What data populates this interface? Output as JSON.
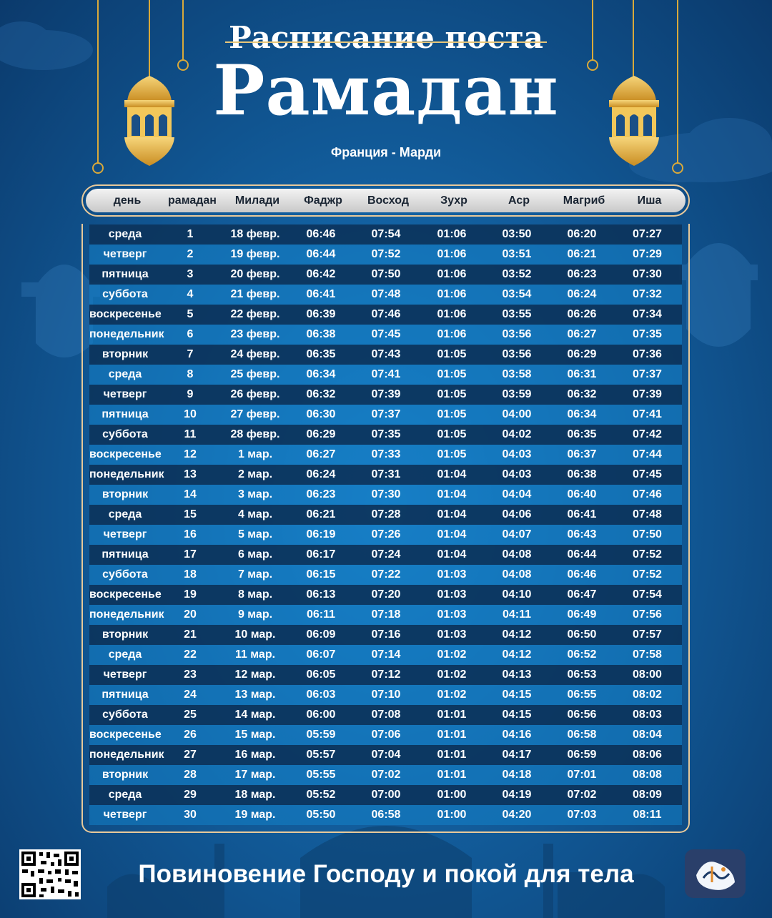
{
  "header": {
    "subtitle": "Расписание поста",
    "title": "Рамадан",
    "location": "Франция - Марди"
  },
  "table": {
    "columns": [
      "день",
      "рамадан",
      "Милади",
      "Фаджр",
      "Восход",
      "Зухр",
      "Аср",
      "Магриб",
      "Иша"
    ],
    "rows": [
      [
        "среда",
        "1",
        "18 февр.",
        "06:46",
        "07:54",
        "01:06",
        "03:50",
        "06:20",
        "07:27"
      ],
      [
        "четверг",
        "2",
        "19 февр.",
        "06:44",
        "07:52",
        "01:06",
        "03:51",
        "06:21",
        "07:29"
      ],
      [
        "пятница",
        "3",
        "20 февр.",
        "06:42",
        "07:50",
        "01:06",
        "03:52",
        "06:23",
        "07:30"
      ],
      [
        "суббота",
        "4",
        "21 февр.",
        "06:41",
        "07:48",
        "01:06",
        "03:54",
        "06:24",
        "07:32"
      ],
      [
        "воскресенье",
        "5",
        "22 февр.",
        "06:39",
        "07:46",
        "01:06",
        "03:55",
        "06:26",
        "07:34"
      ],
      [
        "понедельник",
        "6",
        "23 февр.",
        "06:38",
        "07:45",
        "01:06",
        "03:56",
        "06:27",
        "07:35"
      ],
      [
        "вторник",
        "7",
        "24 февр.",
        "06:35",
        "07:43",
        "01:05",
        "03:56",
        "06:29",
        "07:36"
      ],
      [
        "среда",
        "8",
        "25 февр.",
        "06:34",
        "07:41",
        "01:05",
        "03:58",
        "06:31",
        "07:37"
      ],
      [
        "четверг",
        "9",
        "26 февр.",
        "06:32",
        "07:39",
        "01:05",
        "03:59",
        "06:32",
        "07:39"
      ],
      [
        "пятница",
        "10",
        "27 февр.",
        "06:30",
        "07:37",
        "01:05",
        "04:00",
        "06:34",
        "07:41"
      ],
      [
        "суббота",
        "11",
        "28 февр.",
        "06:29",
        "07:35",
        "01:05",
        "04:02",
        "06:35",
        "07:42"
      ],
      [
        "воскресенье",
        "12",
        "1 мар.",
        "06:27",
        "07:33",
        "01:05",
        "04:03",
        "06:37",
        "07:44"
      ],
      [
        "понедельник",
        "13",
        "2 мар.",
        "06:24",
        "07:31",
        "01:04",
        "04:03",
        "06:38",
        "07:45"
      ],
      [
        "вторник",
        "14",
        "3 мар.",
        "06:23",
        "07:30",
        "01:04",
        "04:04",
        "06:40",
        "07:46"
      ],
      [
        "среда",
        "15",
        "4 мар.",
        "06:21",
        "07:28",
        "01:04",
        "04:06",
        "06:41",
        "07:48"
      ],
      [
        "четверг",
        "16",
        "5 мар.",
        "06:19",
        "07:26",
        "01:04",
        "04:07",
        "06:43",
        "07:50"
      ],
      [
        "пятница",
        "17",
        "6 мар.",
        "06:17",
        "07:24",
        "01:04",
        "04:08",
        "06:44",
        "07:52"
      ],
      [
        "суббота",
        "18",
        "7 мар.",
        "06:15",
        "07:22",
        "01:03",
        "04:08",
        "06:46",
        "07:52"
      ],
      [
        "воскресенье",
        "19",
        "8 мар.",
        "06:13",
        "07:20",
        "01:03",
        "04:10",
        "06:47",
        "07:54"
      ],
      [
        "понедельник",
        "20",
        "9 мар.",
        "06:11",
        "07:18",
        "01:03",
        "04:11",
        "06:49",
        "07:56"
      ],
      [
        "вторник",
        "21",
        "10 мар.",
        "06:09",
        "07:16",
        "01:03",
        "04:12",
        "06:50",
        "07:57"
      ],
      [
        "среда",
        "22",
        "11 мар.",
        "06:07",
        "07:14",
        "01:02",
        "04:12",
        "06:52",
        "07:58"
      ],
      [
        "четверг",
        "23",
        "12 мар.",
        "06:05",
        "07:12",
        "01:02",
        "04:13",
        "06:53",
        "08:00"
      ],
      [
        "пятница",
        "24",
        "13 мар.",
        "06:03",
        "07:10",
        "01:02",
        "04:15",
        "06:55",
        "08:02"
      ],
      [
        "суббота",
        "25",
        "14 мар.",
        "06:00",
        "07:08",
        "01:01",
        "04:15",
        "06:56",
        "08:03"
      ],
      [
        "воскресенье",
        "26",
        "15 мар.",
        "05:59",
        "07:06",
        "01:01",
        "04:16",
        "06:58",
        "08:04"
      ],
      [
        "понедельник",
        "27",
        "16 мар.",
        "05:57",
        "07:04",
        "01:01",
        "04:17",
        "06:59",
        "08:06"
      ],
      [
        "вторник",
        "28",
        "17 мар.",
        "05:55",
        "07:02",
        "01:01",
        "04:18",
        "07:01",
        "08:08"
      ],
      [
        "среда",
        "29",
        "18 мар.",
        "05:52",
        "07:00",
        "01:00",
        "04:19",
        "07:02",
        "08:09"
      ],
      [
        "четверг",
        "30",
        "19 мар.",
        "05:50",
        "06:58",
        "01:00",
        "04:20",
        "07:03",
        "08:11"
      ]
    ]
  },
  "footer": {
    "slogan": "Повиновение Господу и покой для тела"
  },
  "icons": {
    "lantern": "lantern-icon",
    "qr": "qr-code-icon",
    "logo": "app-logo-icon"
  },
  "colors": {
    "accent_gold": "#e8c77a",
    "row_dark": "#0c345c",
    "row_light": "#1482c8"
  }
}
